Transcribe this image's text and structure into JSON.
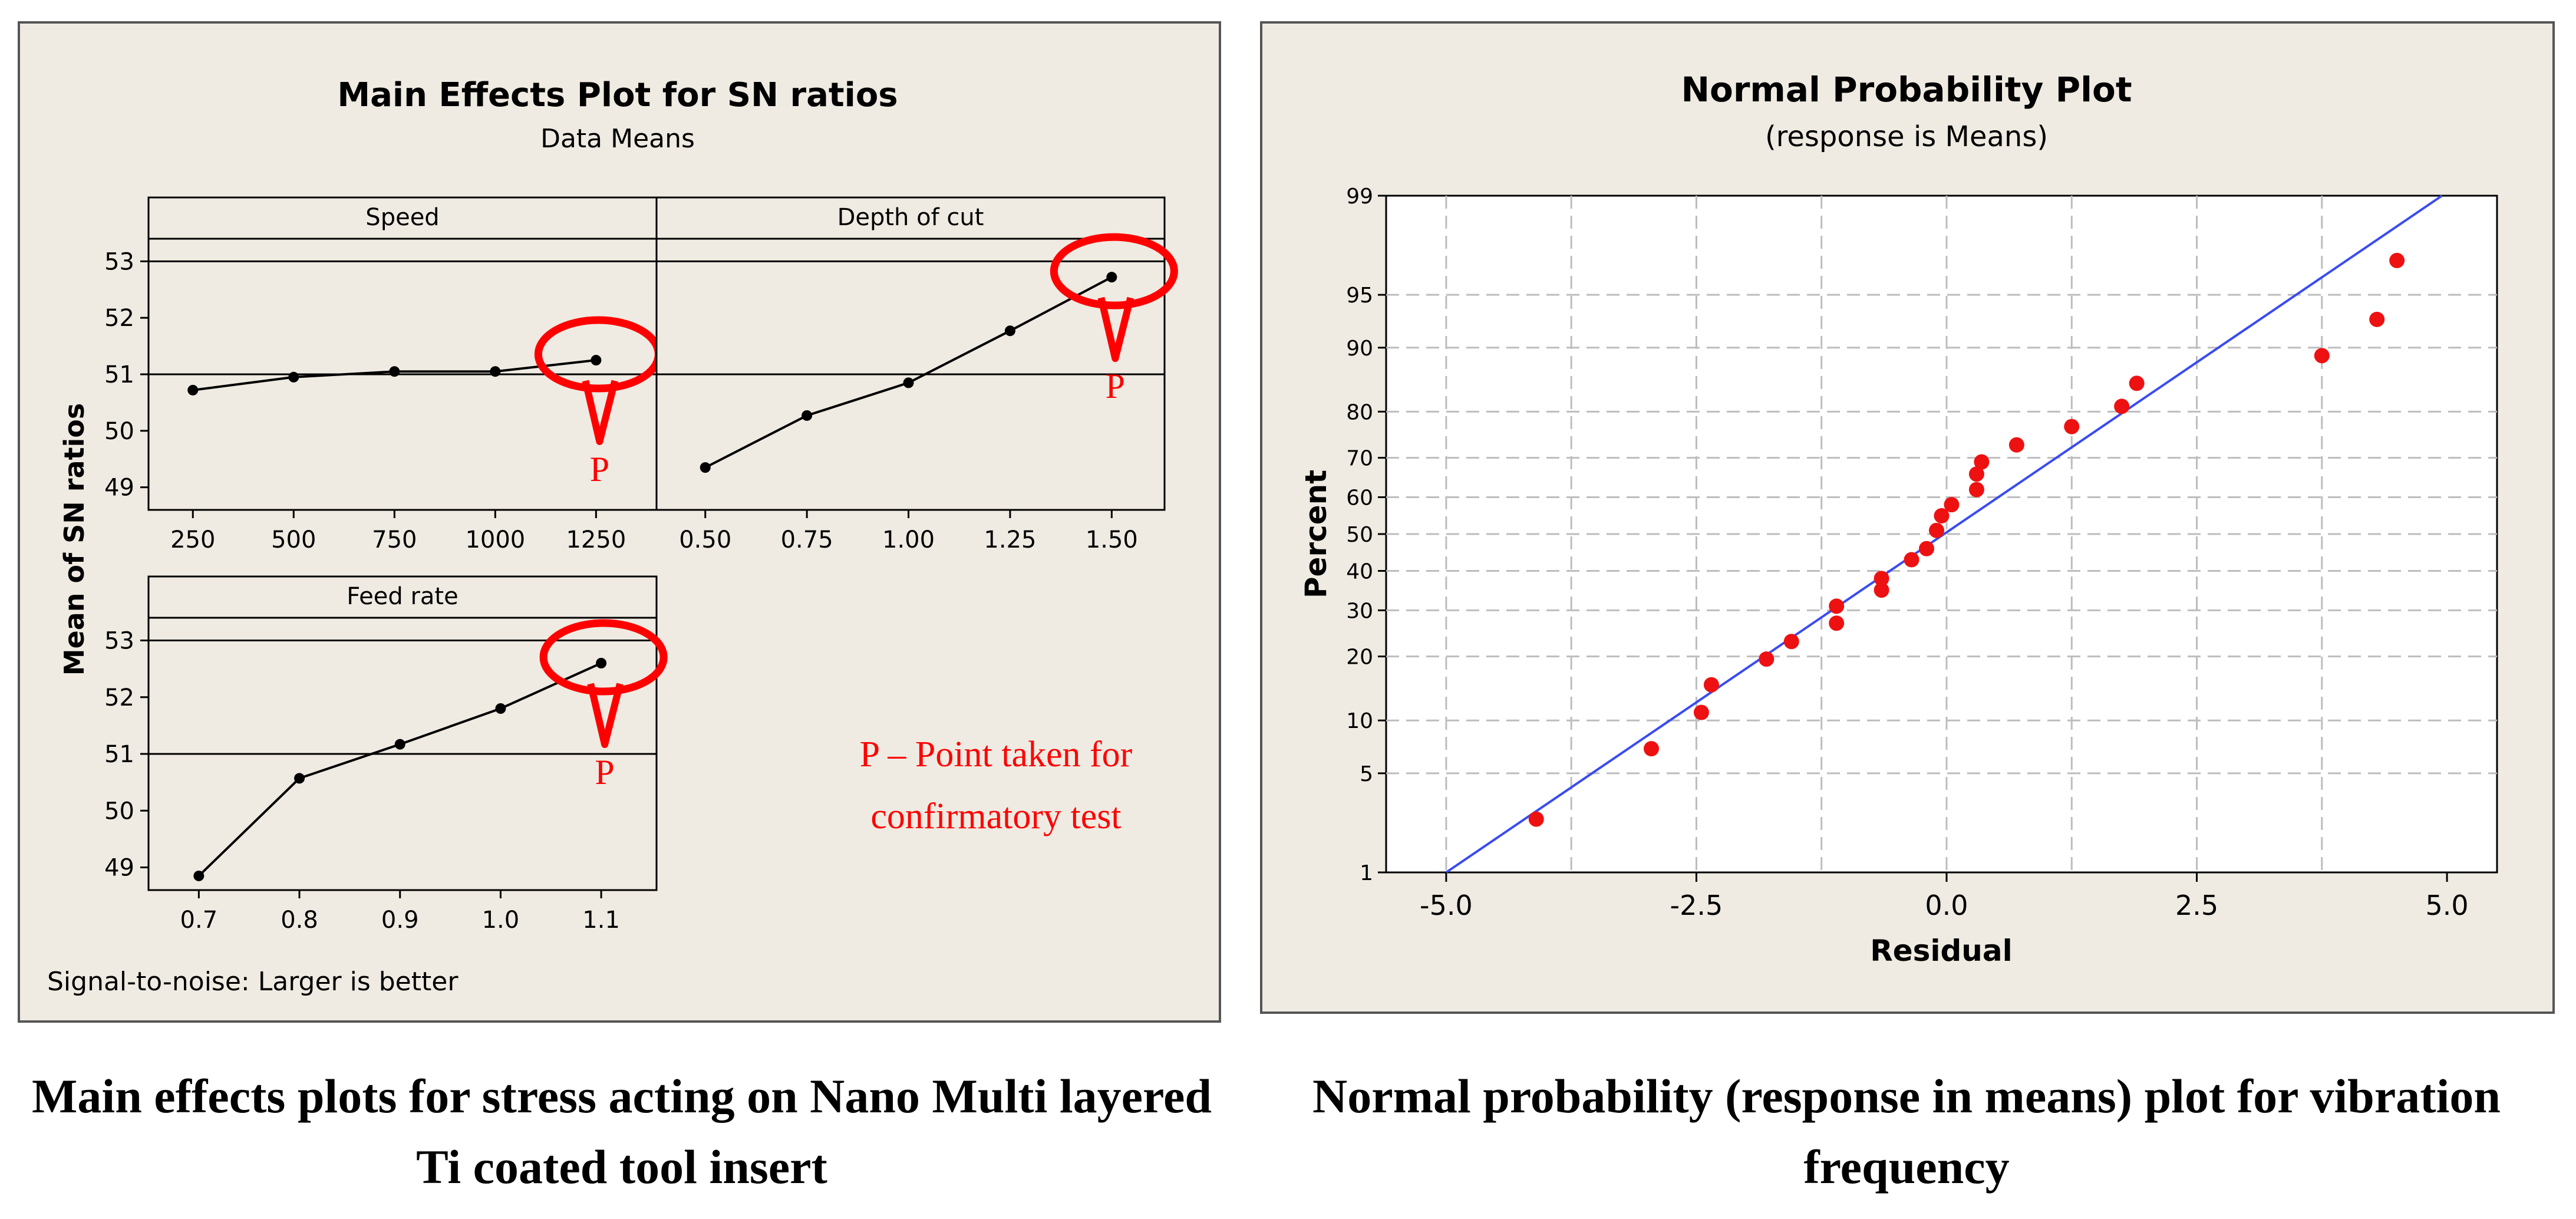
{
  "colors": {
    "panel_bg": "#efebe2",
    "plot_bg": "#ffffff",
    "marker_red": "#ee1111",
    "fit_line": "#3a4cf0",
    "annotation_red": "#ff0000",
    "grid": "#bdbdbd"
  },
  "captions": {
    "left_line1": "Main effects plots for stress acting on Nano Multi layered",
    "left_line2": "Ti coated tool insert",
    "right_line1": "Normal probability (response in means) plot for vibration",
    "right_line2": "frequency"
  },
  "chart_data": [
    {
      "type": "line",
      "title": "Main Effects Plot for SN ratios",
      "subtitle": "Data Means",
      "ylabel": "Mean of SN ratios",
      "footnote": "Signal-to-noise: Larger is better",
      "ylim": [
        48.6,
        53.4
      ],
      "yticks": [
        49,
        50,
        51,
        52,
        53
      ],
      "reference_lines": [
        51,
        53
      ],
      "annotation_marker": "P",
      "annotation_text_line1": "P – Point taken for",
      "annotation_text_line2": "confirmatory test",
      "panels": [
        {
          "label": "Speed",
          "x": [
            250,
            500,
            750,
            1000,
            1250
          ],
          "xtick_labels": [
            "250",
            "500",
            "750",
            "1000",
            "1250"
          ],
          "xlim": [
            140,
            1400
          ],
          "values": [
            50.72,
            50.95,
            51.05,
            51.05,
            51.25
          ],
          "highlight_index": 4
        },
        {
          "label": "Depth of cut",
          "x": [
            0.5,
            0.75,
            1.0,
            1.25,
            1.5
          ],
          "xtick_labels": [
            "0.50",
            "0.75",
            "1.00",
            "1.25",
            "1.50"
          ],
          "xlim": [
            0.38,
            1.63
          ],
          "values": [
            49.35,
            50.27,
            50.85,
            51.77,
            52.72
          ],
          "highlight_index": 4
        },
        {
          "label": "Feed rate",
          "x": [
            0.7,
            0.8,
            0.9,
            1.0,
            1.1
          ],
          "xtick_labels": [
            "0.7",
            "0.8",
            "0.9",
            "1.0",
            "1.1"
          ],
          "xlim": [
            0.65,
            1.155
          ],
          "values": [
            48.85,
            50.57,
            51.17,
            51.8,
            52.6
          ],
          "highlight_index": 4
        }
      ]
    },
    {
      "type": "scatter",
      "title": "Normal Probability Plot",
      "subtitle": "(response is Means)",
      "xlabel": "Residual",
      "ylabel": "Percent",
      "xlim": [
        -5.6,
        5.5
      ],
      "xticks": [
        -5.0,
        -2.5,
        0.0,
        2.5,
        5.0
      ],
      "xtick_labels": [
        "-5.0",
        "-2.5",
        "0.0",
        "2.5",
        "5.0"
      ],
      "grid_x": [
        -5.0,
        -3.75,
        -2.5,
        -1.25,
        0.0,
        1.25,
        2.5,
        3.75
      ],
      "yticks": [
        1,
        5,
        10,
        20,
        30,
        40,
        50,
        60,
        70,
        80,
        90,
        95,
        99
      ],
      "ylim_percent": [
        1,
        99
      ],
      "fit_line": {
        "x0": -5.0,
        "p0": 1,
        "x1": 4.95,
        "p1": 99
      },
      "points": [
        {
          "x": -4.1,
          "p": 2.5
        },
        {
          "x": -2.95,
          "p": 7
        },
        {
          "x": -2.45,
          "p": 11
        },
        {
          "x": -2.35,
          "p": 15
        },
        {
          "x": -1.8,
          "p": 19.5
        },
        {
          "x": -1.55,
          "p": 23
        },
        {
          "x": -1.1,
          "p": 27
        },
        {
          "x": -1.1,
          "p": 31
        },
        {
          "x": -0.65,
          "p": 35
        },
        {
          "x": -0.65,
          "p": 38
        },
        {
          "x": -0.35,
          "p": 43
        },
        {
          "x": -0.2,
          "p": 46
        },
        {
          "x": -0.1,
          "p": 51
        },
        {
          "x": -0.05,
          "p": 55
        },
        {
          "x": 0.05,
          "p": 58
        },
        {
          "x": 0.3,
          "p": 62
        },
        {
          "x": 0.3,
          "p": 66
        },
        {
          "x": 0.35,
          "p": 69
        },
        {
          "x": 0.7,
          "p": 73
        },
        {
          "x": 1.25,
          "p": 77
        },
        {
          "x": 1.75,
          "p": 81
        },
        {
          "x": 1.9,
          "p": 85
        },
        {
          "x": 3.75,
          "p": 89
        },
        {
          "x": 4.3,
          "p": 93
        },
        {
          "x": 4.5,
          "p": 97
        }
      ]
    }
  ]
}
